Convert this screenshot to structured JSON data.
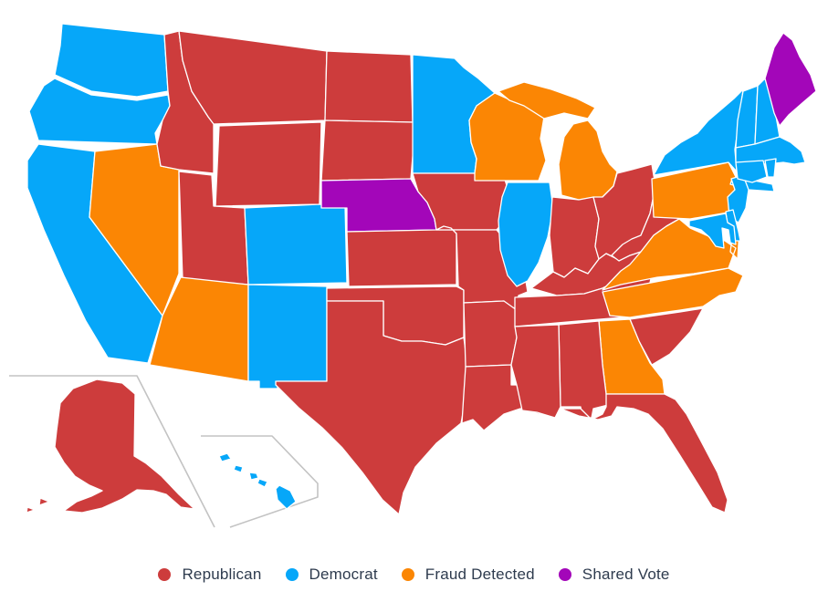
{
  "legend": {
    "items": [
      {
        "label": "Republican",
        "key": "Republican"
      },
      {
        "label": "Democrat",
        "key": "Democrat"
      },
      {
        "label": "Fraud Detected",
        "key": "Fraud Detected"
      },
      {
        "label": "Shared Vote",
        "key": "Shared Vote"
      }
    ]
  },
  "map": {
    "colors": {
      "Republican": "#cd3c3c",
      "Democrat": "#06a7f9",
      "Fraud Detected": "#fb8604",
      "Shared Vote": "#a306b9"
    },
    "border_color": "#ffffff",
    "background": "#ffffff",
    "inset_border_color": "#c3c3c3"
  },
  "chart_data": {
    "type": "choropleth",
    "region": "United States (Albers USA projection with Alaska and Hawaii insets)",
    "title": "",
    "legend_position": "bottom-center",
    "categories": [
      {
        "label": "Republican",
        "color": "#cd3c3c"
      },
      {
        "label": "Democrat",
        "color": "#06a7f9"
      },
      {
        "label": "Fraud Detected",
        "color": "#fb8604"
      },
      {
        "label": "Shared Vote",
        "color": "#a306b9"
      }
    ],
    "assignments": {
      "WA": "Democrat",
      "OR": "Democrat",
      "CA": "Democrat",
      "NV": "Fraud Detected",
      "ID": "Republican",
      "MT": "Republican",
      "WY": "Republican",
      "UT": "Republican",
      "CO": "Democrat",
      "AZ": "Fraud Detected",
      "NM": "Democrat",
      "ND": "Republican",
      "SD": "Republican",
      "NE": "Shared Vote",
      "KS": "Republican",
      "OK": "Republican",
      "TX": "Republican",
      "MN": "Democrat",
      "IA": "Republican",
      "MO": "Republican",
      "AR": "Republican",
      "LA": "Republican",
      "WI": "Fraud Detected",
      "MI": "Fraud Detected",
      "IL": "Democrat",
      "IN": "Republican",
      "OH": "Republican",
      "KY": "Republican",
      "TN": "Republican",
      "MS": "Republican",
      "AL": "Republican",
      "GA": "Fraud Detected",
      "FL": "Republican",
      "SC": "Republican",
      "NC": "Fraud Detected",
      "VA": "Fraud Detected",
      "WV": "Republican",
      "MD": "Democrat",
      "DE": "Democrat",
      "PA": "Fraud Detected",
      "NJ": "Democrat",
      "NY": "Democrat",
      "CT": "Democrat",
      "RI": "Democrat",
      "MA": "Democrat",
      "VT": "Democrat",
      "NH": "Democrat",
      "ME": "Shared Vote",
      "AK": "Republican",
      "HI": "Democrat"
    },
    "state_names": {
      "WA": "Washington",
      "OR": "Oregon",
      "CA": "California",
      "NV": "Nevada",
      "ID": "Idaho",
      "MT": "Montana",
      "WY": "Wyoming",
      "UT": "Utah",
      "CO": "Colorado",
      "AZ": "Arizona",
      "NM": "New Mexico",
      "ND": "North Dakota",
      "SD": "South Dakota",
      "NE": "Nebraska",
      "KS": "Kansas",
      "OK": "Oklahoma",
      "TX": "Texas",
      "MN": "Minnesota",
      "IA": "Iowa",
      "MO": "Missouri",
      "AR": "Arkansas",
      "LA": "Louisiana",
      "WI": "Wisconsin",
      "MI": "Michigan",
      "IL": "Illinois",
      "IN": "Indiana",
      "OH": "Ohio",
      "KY": "Kentucky",
      "TN": "Tennessee",
      "MS": "Mississippi",
      "AL": "Alabama",
      "GA": "Georgia",
      "FL": "Florida",
      "SC": "South Carolina",
      "NC": "North Carolina",
      "VA": "Virginia",
      "WV": "West Virginia",
      "MD": "Maryland",
      "DE": "Delaware",
      "PA": "Pennsylvania",
      "NJ": "New Jersey",
      "NY": "New York",
      "CT": "Connecticut",
      "RI": "Rhode Island",
      "MA": "Massachusetts",
      "VT": "Vermont",
      "NH": "New Hampshire",
      "ME": "Maine",
      "AK": "Alaska",
      "HI": "Hawaii"
    },
    "counts": {
      "Republican": 23,
      "Democrat": 17,
      "Fraud Detected": 8,
      "Shared Vote": 2
    }
  }
}
